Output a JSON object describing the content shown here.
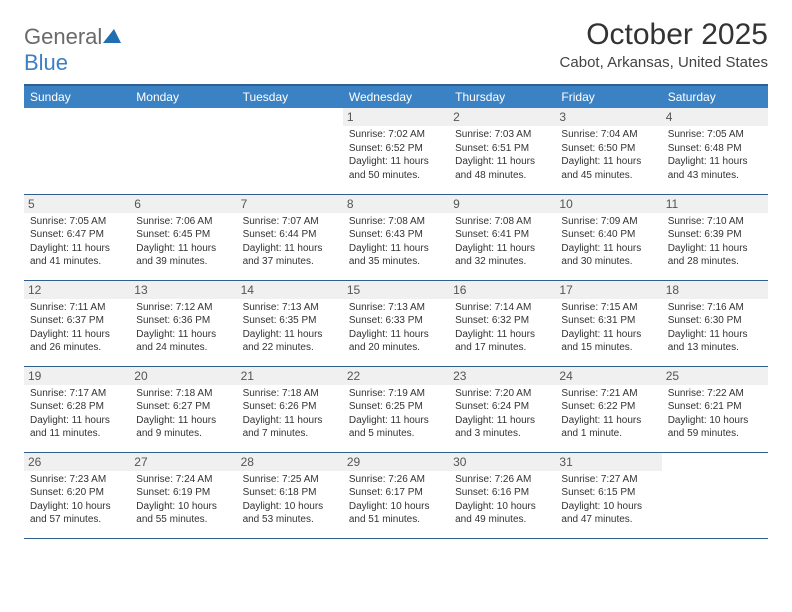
{
  "brand": {
    "part1": "General",
    "part2": "Blue"
  },
  "title": "October 2025",
  "location": "Cabot, Arkansas, United States",
  "colors": {
    "header_bg": "#3b82c4",
    "header_border": "#2f5f8f",
    "daynum_bg": "#f0f0f0",
    "text": "#333333"
  },
  "day_headers": [
    "Sunday",
    "Monday",
    "Tuesday",
    "Wednesday",
    "Thursday",
    "Friday",
    "Saturday"
  ],
  "weeks": [
    [
      {
        "n": "",
        "lines": []
      },
      {
        "n": "",
        "lines": []
      },
      {
        "n": "",
        "lines": []
      },
      {
        "n": "1",
        "lines": [
          "Sunrise: 7:02 AM",
          "Sunset: 6:52 PM",
          "Daylight: 11 hours and 50 minutes."
        ]
      },
      {
        "n": "2",
        "lines": [
          "Sunrise: 7:03 AM",
          "Sunset: 6:51 PM",
          "Daylight: 11 hours and 48 minutes."
        ]
      },
      {
        "n": "3",
        "lines": [
          "Sunrise: 7:04 AM",
          "Sunset: 6:50 PM",
          "Daylight: 11 hours and 45 minutes."
        ]
      },
      {
        "n": "4",
        "lines": [
          "Sunrise: 7:05 AM",
          "Sunset: 6:48 PM",
          "Daylight: 11 hours and 43 minutes."
        ]
      }
    ],
    [
      {
        "n": "5",
        "lines": [
          "Sunrise: 7:05 AM",
          "Sunset: 6:47 PM",
          "Daylight: 11 hours and 41 minutes."
        ]
      },
      {
        "n": "6",
        "lines": [
          "Sunrise: 7:06 AM",
          "Sunset: 6:45 PM",
          "Daylight: 11 hours and 39 minutes."
        ]
      },
      {
        "n": "7",
        "lines": [
          "Sunrise: 7:07 AM",
          "Sunset: 6:44 PM",
          "Daylight: 11 hours and 37 minutes."
        ]
      },
      {
        "n": "8",
        "lines": [
          "Sunrise: 7:08 AM",
          "Sunset: 6:43 PM",
          "Daylight: 11 hours and 35 minutes."
        ]
      },
      {
        "n": "9",
        "lines": [
          "Sunrise: 7:08 AM",
          "Sunset: 6:41 PM",
          "Daylight: 11 hours and 32 minutes."
        ]
      },
      {
        "n": "10",
        "lines": [
          "Sunrise: 7:09 AM",
          "Sunset: 6:40 PM",
          "Daylight: 11 hours and 30 minutes."
        ]
      },
      {
        "n": "11",
        "lines": [
          "Sunrise: 7:10 AM",
          "Sunset: 6:39 PM",
          "Daylight: 11 hours and 28 minutes."
        ]
      }
    ],
    [
      {
        "n": "12",
        "lines": [
          "Sunrise: 7:11 AM",
          "Sunset: 6:37 PM",
          "Daylight: 11 hours and 26 minutes."
        ]
      },
      {
        "n": "13",
        "lines": [
          "Sunrise: 7:12 AM",
          "Sunset: 6:36 PM",
          "Daylight: 11 hours and 24 minutes."
        ]
      },
      {
        "n": "14",
        "lines": [
          "Sunrise: 7:13 AM",
          "Sunset: 6:35 PM",
          "Daylight: 11 hours and 22 minutes."
        ]
      },
      {
        "n": "15",
        "lines": [
          "Sunrise: 7:13 AM",
          "Sunset: 6:33 PM",
          "Daylight: 11 hours and 20 minutes."
        ]
      },
      {
        "n": "16",
        "lines": [
          "Sunrise: 7:14 AM",
          "Sunset: 6:32 PM",
          "Daylight: 11 hours and 17 minutes."
        ]
      },
      {
        "n": "17",
        "lines": [
          "Sunrise: 7:15 AM",
          "Sunset: 6:31 PM",
          "Daylight: 11 hours and 15 minutes."
        ]
      },
      {
        "n": "18",
        "lines": [
          "Sunrise: 7:16 AM",
          "Sunset: 6:30 PM",
          "Daylight: 11 hours and 13 minutes."
        ]
      }
    ],
    [
      {
        "n": "19",
        "lines": [
          "Sunrise: 7:17 AM",
          "Sunset: 6:28 PM",
          "Daylight: 11 hours and 11 minutes."
        ]
      },
      {
        "n": "20",
        "lines": [
          "Sunrise: 7:18 AM",
          "Sunset: 6:27 PM",
          "Daylight: 11 hours and 9 minutes."
        ]
      },
      {
        "n": "21",
        "lines": [
          "Sunrise: 7:18 AM",
          "Sunset: 6:26 PM",
          "Daylight: 11 hours and 7 minutes."
        ]
      },
      {
        "n": "22",
        "lines": [
          "Sunrise: 7:19 AM",
          "Sunset: 6:25 PM",
          "Daylight: 11 hours and 5 minutes."
        ]
      },
      {
        "n": "23",
        "lines": [
          "Sunrise: 7:20 AM",
          "Sunset: 6:24 PM",
          "Daylight: 11 hours and 3 minutes."
        ]
      },
      {
        "n": "24",
        "lines": [
          "Sunrise: 7:21 AM",
          "Sunset: 6:22 PM",
          "Daylight: 11 hours and 1 minute."
        ]
      },
      {
        "n": "25",
        "lines": [
          "Sunrise: 7:22 AM",
          "Sunset: 6:21 PM",
          "Daylight: 10 hours and 59 minutes."
        ]
      }
    ],
    [
      {
        "n": "26",
        "lines": [
          "Sunrise: 7:23 AM",
          "Sunset: 6:20 PM",
          "Daylight: 10 hours and 57 minutes."
        ]
      },
      {
        "n": "27",
        "lines": [
          "Sunrise: 7:24 AM",
          "Sunset: 6:19 PM",
          "Daylight: 10 hours and 55 minutes."
        ]
      },
      {
        "n": "28",
        "lines": [
          "Sunrise: 7:25 AM",
          "Sunset: 6:18 PM",
          "Daylight: 10 hours and 53 minutes."
        ]
      },
      {
        "n": "29",
        "lines": [
          "Sunrise: 7:26 AM",
          "Sunset: 6:17 PM",
          "Daylight: 10 hours and 51 minutes."
        ]
      },
      {
        "n": "30",
        "lines": [
          "Sunrise: 7:26 AM",
          "Sunset: 6:16 PM",
          "Daylight: 10 hours and 49 minutes."
        ]
      },
      {
        "n": "31",
        "lines": [
          "Sunrise: 7:27 AM",
          "Sunset: 6:15 PM",
          "Daylight: 10 hours and 47 minutes."
        ]
      },
      {
        "n": "",
        "lines": []
      }
    ]
  ]
}
